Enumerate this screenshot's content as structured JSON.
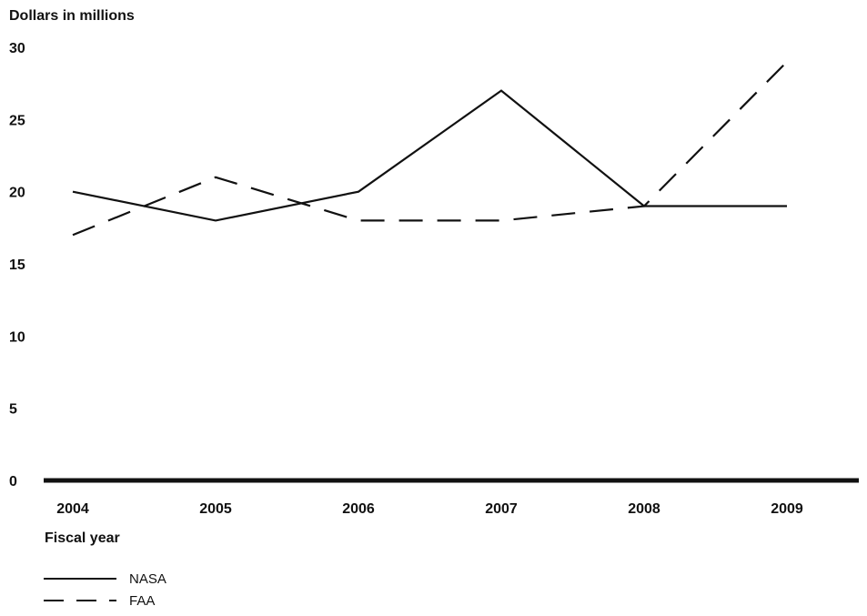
{
  "chart_data": {
    "type": "line",
    "title": "",
    "ylabel": "Dollars in millions",
    "xlabel": "Fiscal year",
    "x": [
      "2004",
      "2005",
      "2006",
      "2007",
      "2008",
      "2009"
    ],
    "ylim": [
      0,
      30
    ],
    "yticks": [
      0,
      5,
      10,
      15,
      20,
      25,
      30
    ],
    "grid": false,
    "legend_position": "bottom-left",
    "series": [
      {
        "name": "NASA",
        "style": "solid",
        "color": "#111111",
        "values": [
          20,
          18,
          20,
          27,
          19,
          19
        ]
      },
      {
        "name": "FAA",
        "style": "dashed",
        "color": "#111111",
        "values": [
          17,
          21,
          18,
          18,
          19,
          29
        ]
      }
    ]
  }
}
